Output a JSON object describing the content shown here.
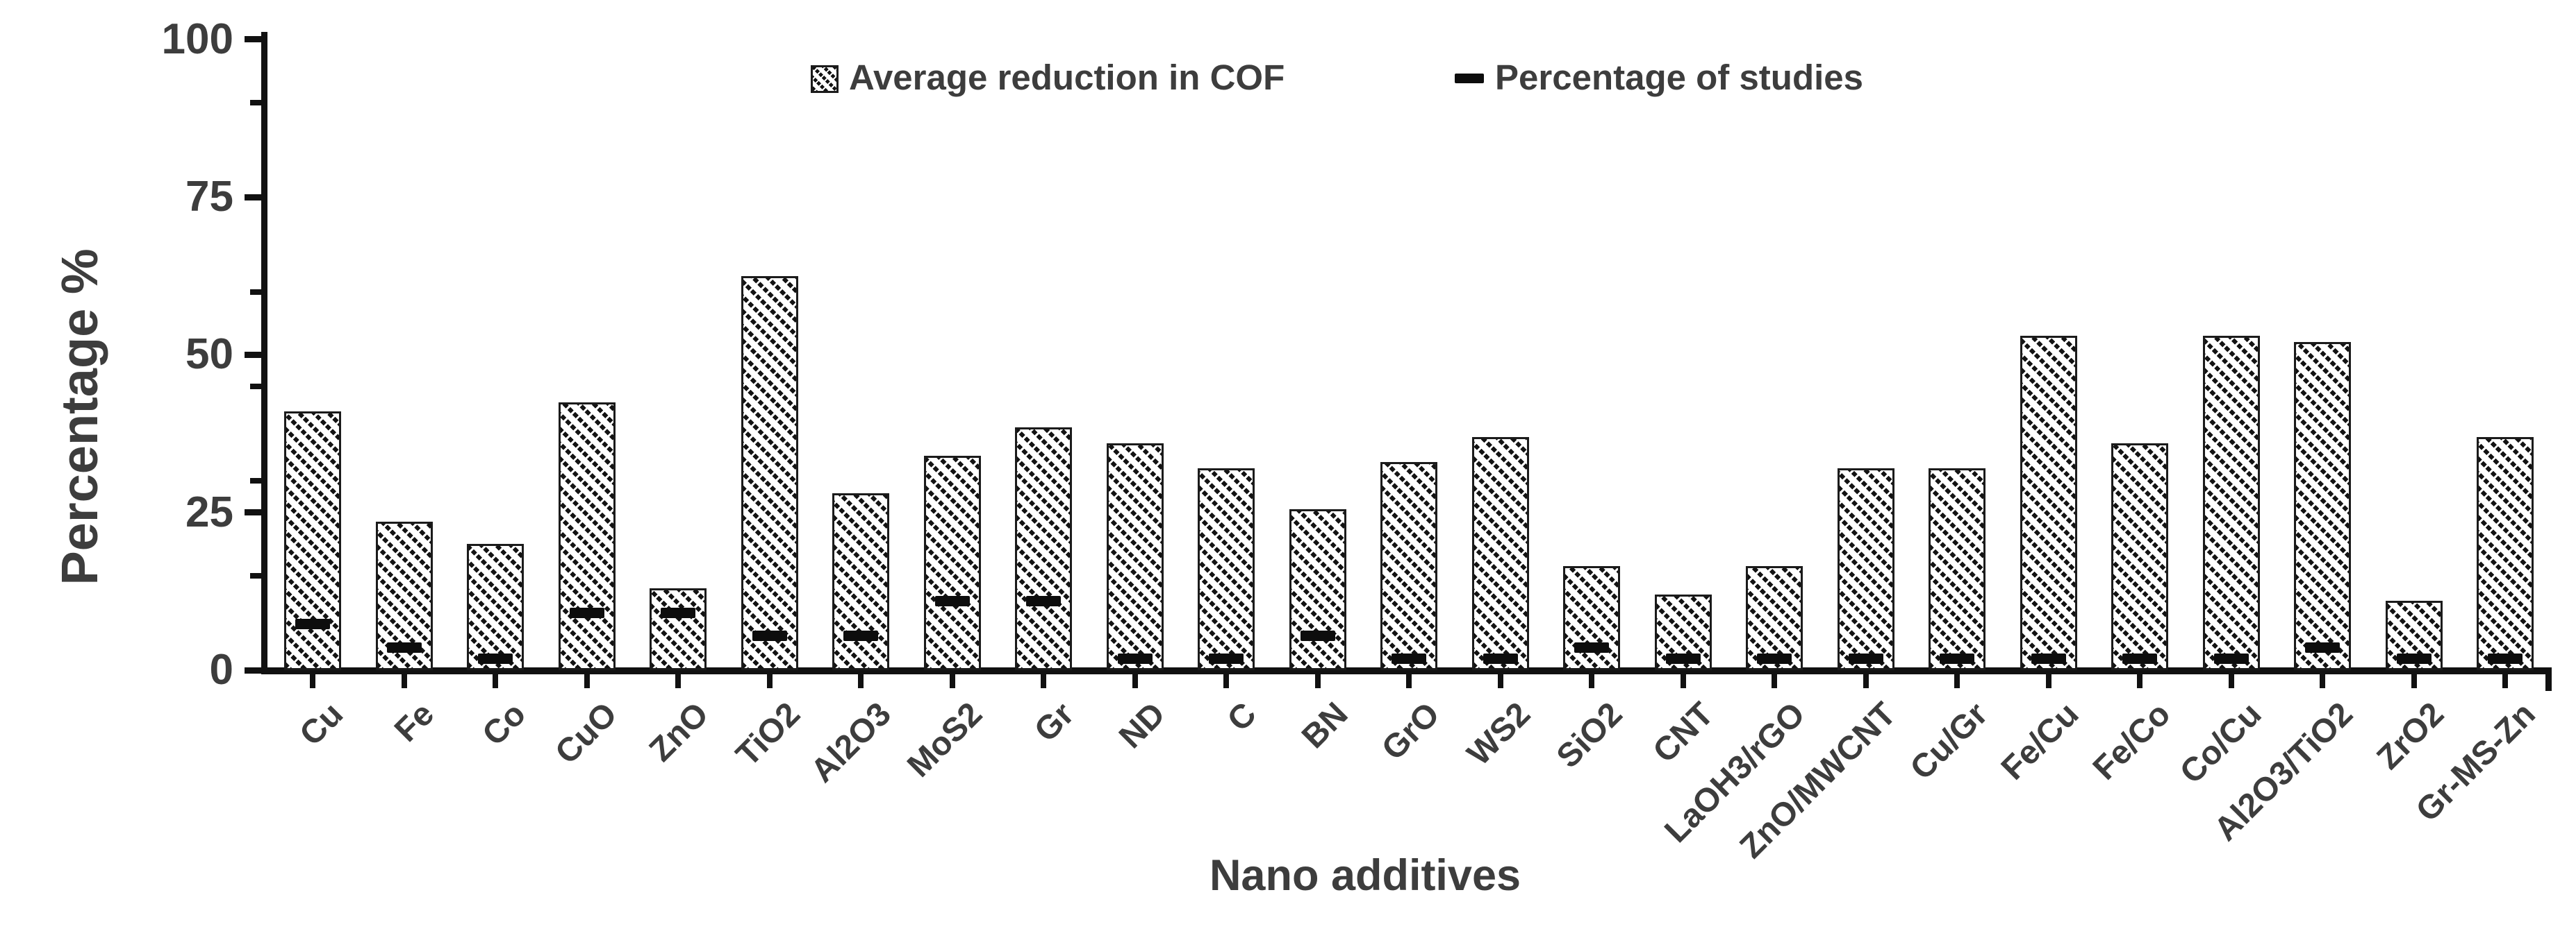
{
  "figure": {
    "y_axis_title": "Percentage %",
    "x_axis_title": "Nano additives",
    "legend": {
      "series1_label": "Average reduction in COF",
      "series2_label": "Percentage of studies"
    }
  },
  "chart_data": {
    "type": "bar",
    "title": "",
    "xlabel": "Nano additives",
    "ylabel": "Percentage %",
    "ylim": [
      0,
      100
    ],
    "y_major_ticks": [
      0,
      25,
      50,
      75,
      100
    ],
    "y_minor_ticks": [
      15,
      30,
      45,
      60,
      90
    ],
    "grid": false,
    "legend_position": "top-center",
    "bar_style": "white fill with black diagonal dashed hatch",
    "marker_style": "short thick black horizontal dash",
    "colors": {
      "bar_line": "#111111",
      "dash_marker": "#0d0d0d",
      "text": "#3d3d3d",
      "background": "#ffffff"
    },
    "categories": [
      "Cu",
      "Fe",
      "Co",
      "CuO",
      "ZnO",
      "TiO2",
      "Al2O3",
      "MoS2",
      "Gr",
      "ND",
      "C",
      "BN",
      "GrO",
      "WS2",
      "SiO2",
      "CNT",
      "LaOH3/rGO",
      "ZnO/MWCNT",
      "Cu/Gr",
      "Fe/Cu",
      "Fe/Co",
      "Co/Cu",
      "Al2O3/TiO2",
      "ZrO2",
      "Gr-MS-Zn"
    ],
    "series": [
      {
        "name": "Average reduction in COF",
        "marker": "hatched-bar",
        "values": [
          41,
          23.5,
          20,
          42.5,
          13,
          62.5,
          28,
          34,
          38.5,
          36,
          32,
          25.5,
          33,
          37,
          16.5,
          12,
          16.5,
          32,
          32,
          53,
          36,
          53,
          52,
          11,
          37
        ]
      },
      {
        "name": "Percentage of studies",
        "marker": "dash",
        "values": [
          7.3,
          3.6,
          1.8,
          9.1,
          9.1,
          5.5,
          5.5,
          10.9,
          10.9,
          1.8,
          1.8,
          5.5,
          1.8,
          1.8,
          3.6,
          1.8,
          1.8,
          1.8,
          1.8,
          1.8,
          1.8,
          1.8,
          3.6,
          1.8,
          1.8
        ]
      }
    ]
  }
}
